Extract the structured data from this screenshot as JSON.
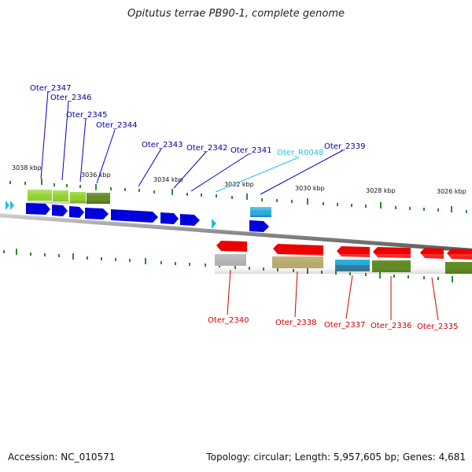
{
  "title": "Opitutus terrae PB90-1, complete genome",
  "footer": {
    "accession": "Accession: NC_010571",
    "summary": "Topology: circular; Length: 5,957,605 bp; Genes: 4,681"
  },
  "ruler": {
    "unit_suffix": "kbp",
    "labels": [
      {
        "text": "3038 kbp",
        "pos_kbp": 3038
      },
      {
        "text": "3036 kbp",
        "pos_kbp": 3036
      },
      {
        "text": "3034 kbp",
        "pos_kbp": 3034
      },
      {
        "text": "3032 kbp",
        "pos_kbp": 3032
      },
      {
        "text": "3030 kbp",
        "pos_kbp": 3030
      },
      {
        "text": "3028 kbp",
        "pos_kbp": 3028
      },
      {
        "text": "3026 kbp",
        "pos_kbp": 3026
      }
    ]
  },
  "colors": {
    "cds_forward": "#0000dd",
    "cds_reverse": "#ee0000",
    "rna": "#22aadd",
    "label_forward": "#000099",
    "label_reverse": "#cc0000",
    "label_rna": "#33bbdd",
    "backbone": "#999999",
    "tick": "#2d8a2d"
  },
  "forward_labels": [
    {
      "name": "Oter_2347"
    },
    {
      "name": "Oter_2346"
    },
    {
      "name": "Oter_2345"
    },
    {
      "name": "Oter_2344"
    },
    {
      "name": "Oter_2343"
    },
    {
      "name": "Oter_2342"
    },
    {
      "name": "Oter_2341"
    },
    {
      "name": "Oter_R0048",
      "kind": "rna"
    },
    {
      "name": "Oter_2339"
    }
  ],
  "reverse_labels": [
    {
      "name": "Oter_2340"
    },
    {
      "name": "Oter_2338"
    },
    {
      "name": "Oter_2337"
    },
    {
      "name": "Oter_2336"
    },
    {
      "name": "Oter_2335"
    }
  ]
}
